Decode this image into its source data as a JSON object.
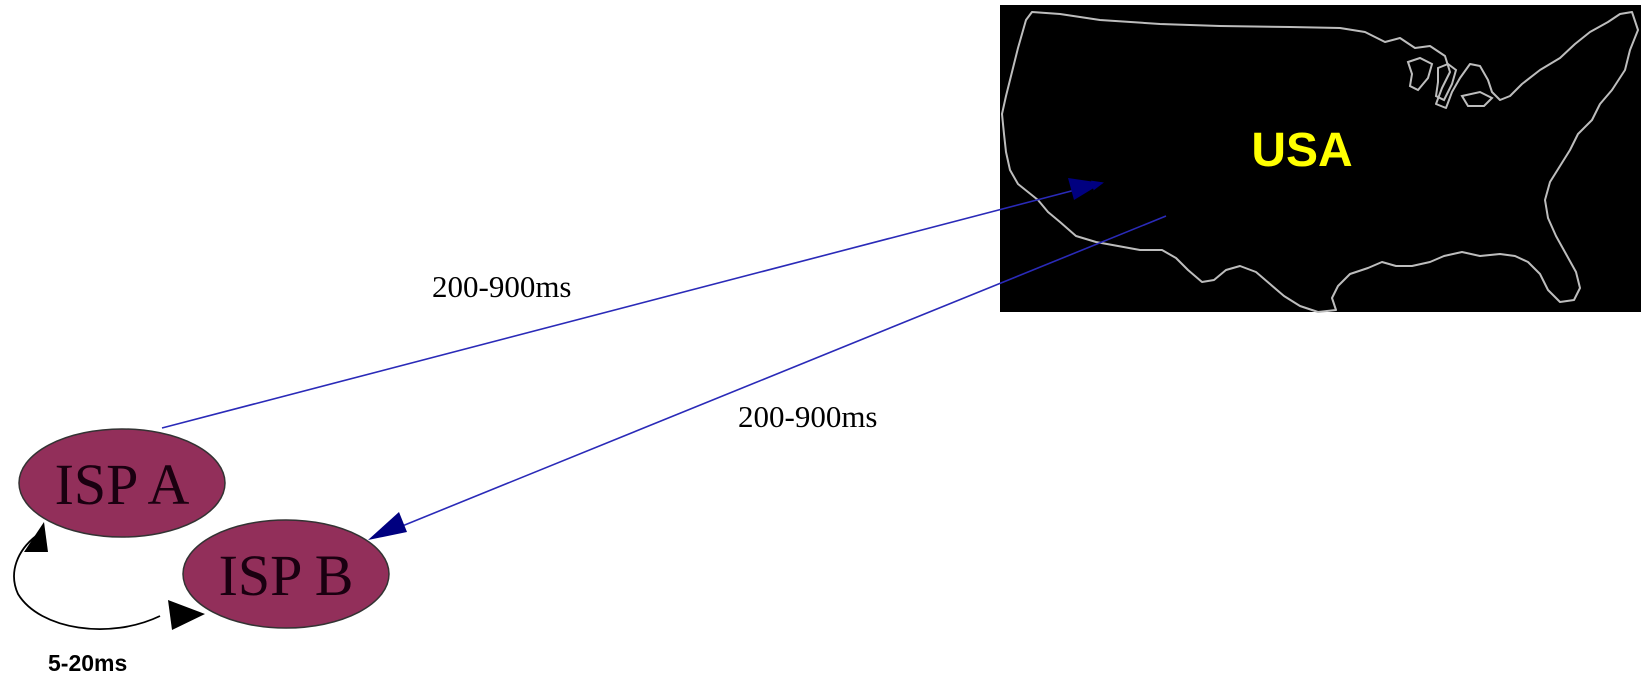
{
  "colors": {
    "map_background": "#000000",
    "map_outline": "#bdbdbd",
    "country_label": "#ffff00",
    "isp_fill": "#922f5a",
    "isp_text": "#1a0010",
    "link": "#2a2ab8",
    "arrowhead": "#000080",
    "local_arrow": "#000000",
    "label_text": "#000000"
  },
  "map": {
    "country_label": "USA"
  },
  "nodes": [
    {
      "id": "isp-a",
      "label": "ISP A"
    },
    {
      "id": "isp-b",
      "label": "ISP B"
    }
  ],
  "links": [
    {
      "from": "ISP A",
      "to": "USA",
      "latency": "200-900ms"
    },
    {
      "from": "USA",
      "to": "ISP B",
      "latency": "200-900ms"
    },
    {
      "from": "ISP B",
      "to": "ISP A",
      "latency": "5-20ms"
    }
  ]
}
